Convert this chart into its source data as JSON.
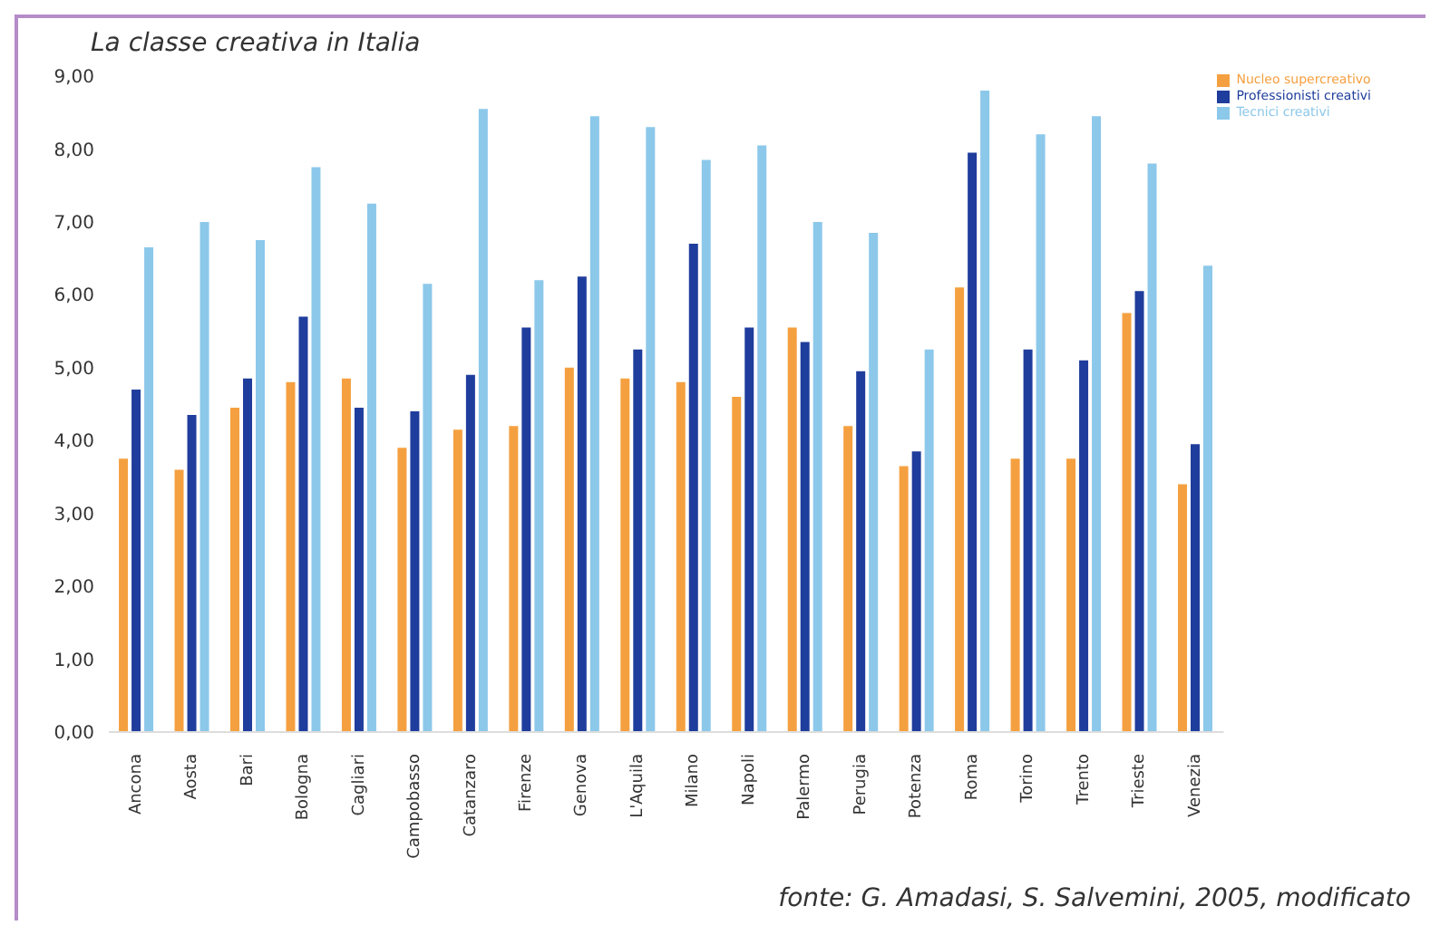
{
  "chart_data": {
    "type": "bar",
    "title": "La classe creativa in Italia",
    "categories": [
      "Ancona",
      "Aosta",
      "Bari",
      "Bologna",
      "Cagliari",
      "Campobasso",
      "Catanzaro",
      "Firenze",
      "Genova",
      "L'Aquila",
      "Milano",
      "Napoli",
      "Palermo",
      "Perugia",
      "Potenza",
      "Roma",
      "Torino",
      "Trento",
      "Trieste",
      "Venezia"
    ],
    "series": [
      {
        "name": "Nucleo supercreativo",
        "color": "#f5a040",
        "values": [
          3.75,
          3.6,
          4.45,
          4.8,
          4.85,
          3.9,
          4.15,
          4.2,
          5.0,
          4.85,
          4.8,
          4.6,
          5.55,
          4.2,
          3.65,
          6.1,
          3.75,
          3.75,
          5.75,
          3.4
        ]
      },
      {
        "name": "Professionisti creativi",
        "color": "#1f3d9c",
        "values": [
          4.7,
          4.35,
          4.85,
          5.7,
          4.45,
          4.4,
          4.9,
          5.55,
          6.25,
          5.25,
          6.7,
          5.55,
          5.35,
          4.95,
          3.85,
          7.95,
          5.25,
          5.1,
          6.05,
          3.95
        ]
      },
      {
        "name": "Tecnici creativi",
        "color": "#8cc8ea",
        "values": [
          6.65,
          7.0,
          6.75,
          7.75,
          7.25,
          6.15,
          8.55,
          6.2,
          8.45,
          8.3,
          7.85,
          8.05,
          7.0,
          6.85,
          5.25,
          8.8,
          8.2,
          8.45,
          7.8,
          6.4
        ]
      }
    ],
    "ylim": [
      0,
      9
    ],
    "yticks": [
      {
        "value": 0,
        "label": "0,00"
      },
      {
        "value": 1,
        "label": "1,00"
      },
      {
        "value": 2,
        "label": "2,00"
      },
      {
        "value": 3,
        "label": "3,00"
      },
      {
        "value": 4,
        "label": "4,00"
      },
      {
        "value": 5,
        "label": "5,00"
      },
      {
        "value": 6,
        "label": "6,00"
      },
      {
        "value": 7,
        "label": "7,00"
      },
      {
        "value": 8,
        "label": "8,00"
      },
      {
        "value": 9,
        "label": "9,00"
      }
    ],
    "grid": false,
    "legend": "top right",
    "annotations": [
      "fonte: G. Amadasi, S. Salvemini, 2005, modificato"
    ]
  }
}
